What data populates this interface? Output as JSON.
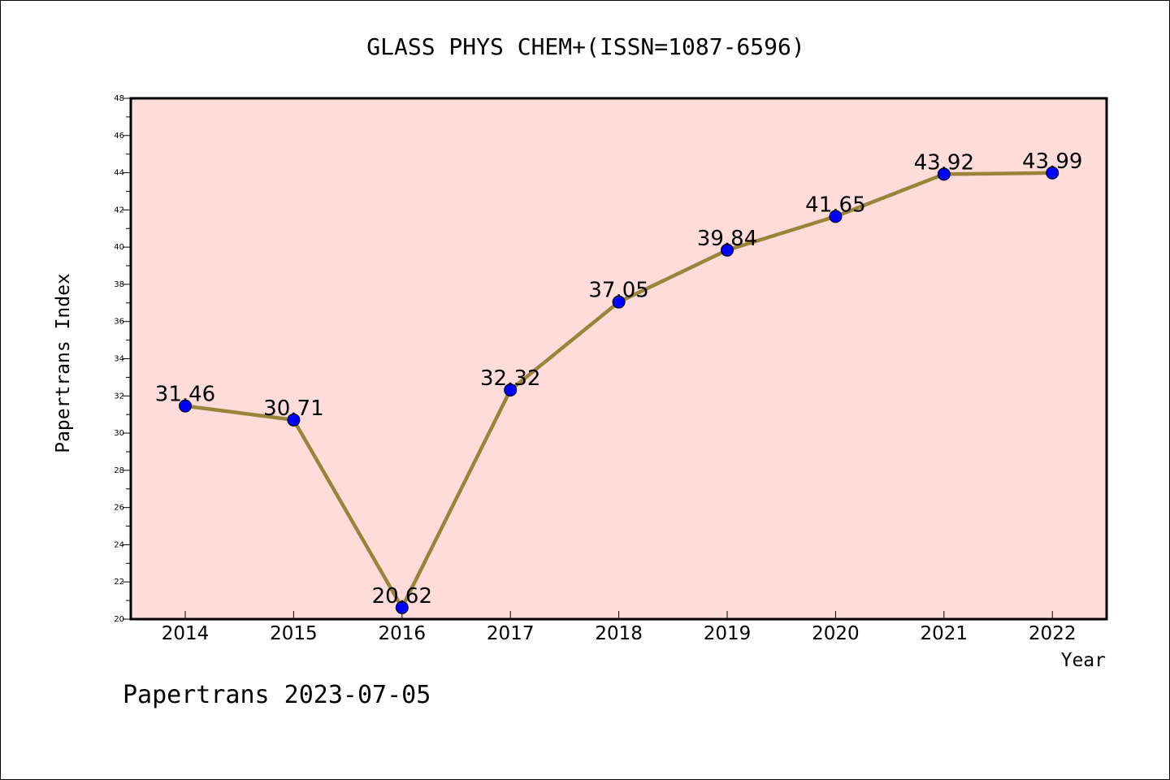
{
  "chart_data": {
    "type": "line",
    "title": "GLASS PHYS CHEM+(ISSN=1087-6596)",
    "xlabel": "Year",
    "ylabel": "Papertrans Index",
    "categories": [
      "2014",
      "2015",
      "2016",
      "2017",
      "2018",
      "2019",
      "2020",
      "2021",
      "2022"
    ],
    "series": [
      {
        "values": [
          31.46,
          30.71,
          20.62,
          32.32,
          37.05,
          39.84,
          41.65,
          43.92,
          43.99
        ],
        "labels": [
          "31.46",
          "30.71",
          "20.62",
          "32.32",
          "37.05",
          "39.84",
          "41.65",
          "43.92",
          "43.99"
        ]
      }
    ],
    "ylim": [
      20,
      48
    ],
    "yticks": [
      "20",
      "22",
      "24",
      "26",
      "28",
      "30",
      "32",
      "34",
      "36",
      "38",
      "40",
      "42",
      "44",
      "46",
      "48"
    ],
    "grid": false,
    "colors": {
      "plot_background": "#fddcda",
      "line": "#998439",
      "marker": "#0000ff"
    }
  },
  "footer": "Papertrans 2023-07-05"
}
